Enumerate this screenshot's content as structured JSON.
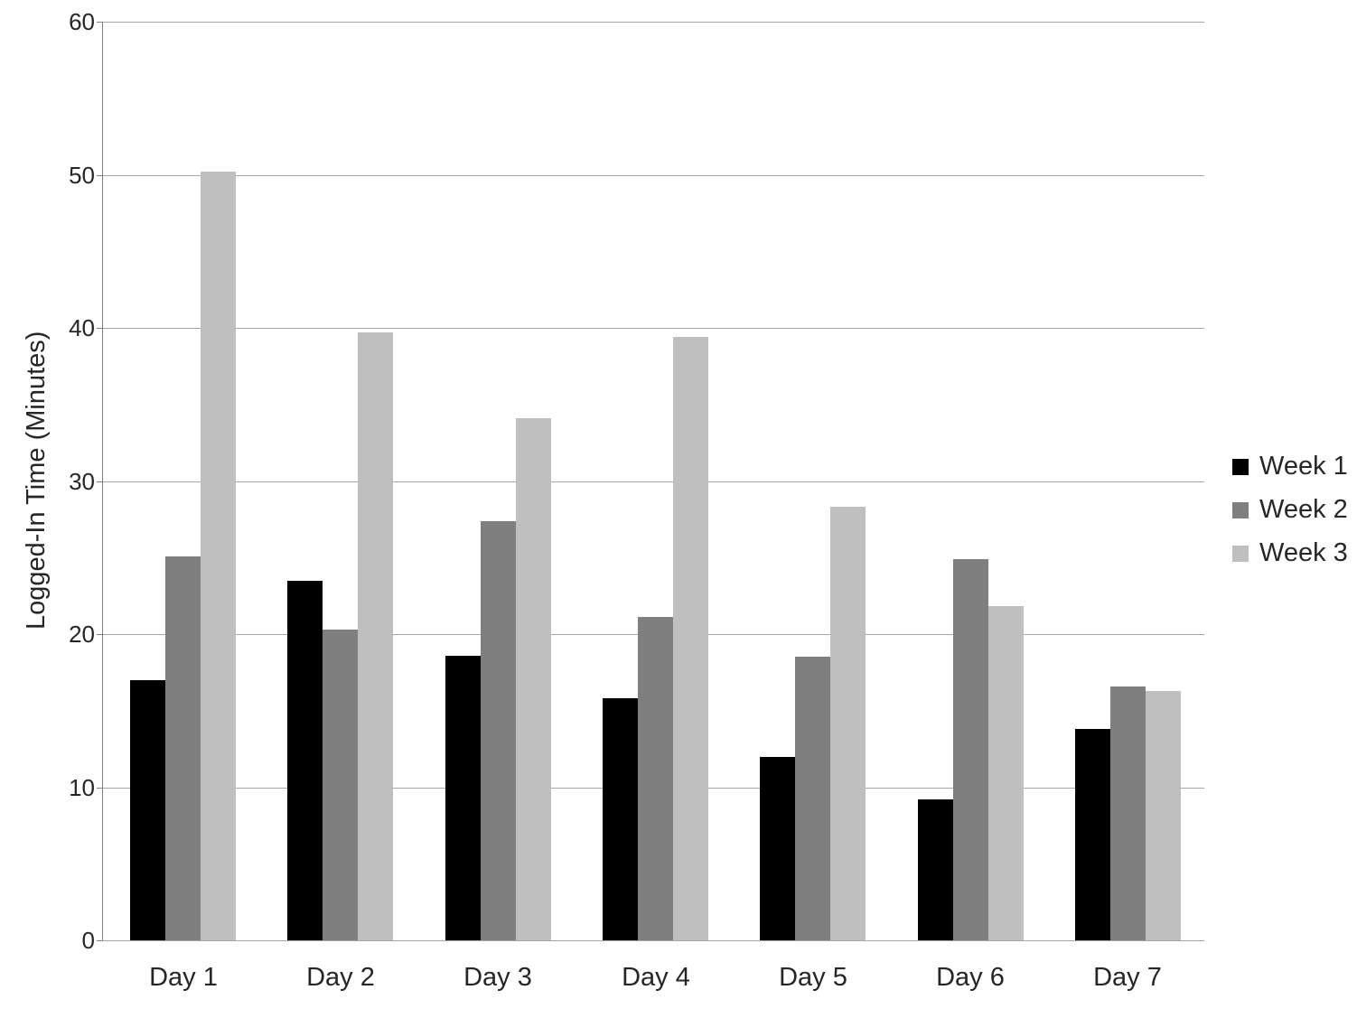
{
  "chart_data": {
    "type": "bar",
    "title": "",
    "xlabel": "",
    "ylabel": "Logged-In Time (Minutes)",
    "categories": [
      "Day 1",
      "Day 2",
      "Day 3",
      "Day 4",
      "Day 5",
      "Day 6",
      "Day 7"
    ],
    "series": [
      {
        "name": "Week 1",
        "color": "#000000",
        "values": [
          17.0,
          23.5,
          18.6,
          15.8,
          12.0,
          9.2,
          13.8
        ]
      },
      {
        "name": "Week 2",
        "color": "#7f7f7f",
        "values": [
          25.1,
          20.3,
          27.4,
          21.1,
          18.5,
          24.9,
          16.6
        ]
      },
      {
        "name": "Week 3",
        "color": "#bfbfbf",
        "values": [
          50.2,
          39.7,
          34.1,
          39.4,
          28.3,
          21.8,
          16.3
        ]
      }
    ],
    "ylim": [
      0,
      60
    ],
    "yticks": [
      0,
      10,
      20,
      30,
      40,
      50,
      60
    ],
    "grid": true,
    "legend_position": "right"
  },
  "colors": {
    "background": "#ffffff",
    "gridline": "#a6a6a6",
    "axis_line": "#808080",
    "text": "#262626"
  }
}
